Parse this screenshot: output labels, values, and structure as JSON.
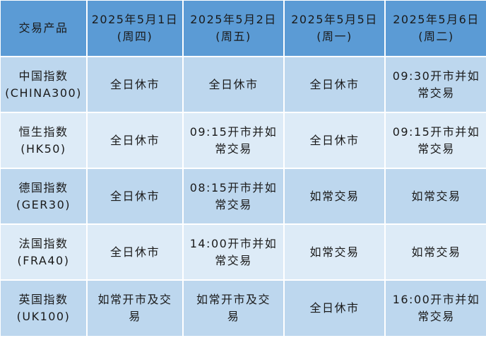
{
  "colors": {
    "header": "#5b9bd5",
    "row_dark": "#bdd7ee",
    "row_light": "#ddebf7"
  },
  "header": [
    "交易产品",
    "2025年5月1日\n(周四)",
    "2025年5月2日\n(周五)",
    "2025年5月5日\n(周一)",
    "2025年5月6日\n(周二)"
  ],
  "rows": [
    [
      "中国指数\n(CHINA300)",
      "全日休市",
      "全日休市",
      "全日休市",
      "09:30开市并如\n常交易"
    ],
    [
      "恒生指数\n(HK50)",
      "全日休市",
      "09:15开市并如\n常交易",
      "全日休市",
      "09:15开市并如\n常交易"
    ],
    [
      "德国指数\n(GER30)",
      "全日休市",
      "08:15开市并如\n常交易",
      "如常交易",
      "如常交易"
    ],
    [
      "法国指数\n(FRA40)",
      "全日休市",
      "14:00开市并如\n常交易",
      "如常交易",
      "如常交易"
    ],
    [
      "英国指数\n(UK100)",
      "如常开市及交\n易",
      "如常开市及交\n易",
      "全日休市",
      "16:00开市并如\n常交易"
    ]
  ]
}
